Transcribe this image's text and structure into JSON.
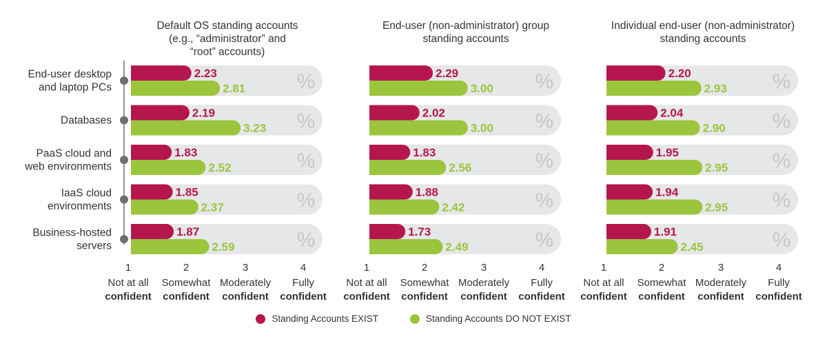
{
  "chart_data": {
    "type": "bar",
    "orientation": "horizontal",
    "xlim": [
      1,
      4
    ],
    "categories": [
      [
        "End-user desktop",
        "and laptop PCs"
      ],
      [
        "Databases"
      ],
      [
        "PaaS cloud and",
        "web environments"
      ],
      [
        "IaaS cloud",
        "environments"
      ],
      [
        "Business-hosted",
        "servers"
      ]
    ],
    "ticks": [
      {
        "num": "1",
        "top": "Not at all",
        "bottom": "confident"
      },
      {
        "num": "2",
        "top": "Somewhat",
        "bottom": "confident"
      },
      {
        "num": "3",
        "top": "Moderately",
        "bottom": "confident"
      },
      {
        "num": "4",
        "top": "Fully",
        "bottom": "confident"
      }
    ],
    "background_symbol": "%",
    "panels": [
      {
        "title": [
          "Default OS standing accounts",
          "(e.g., “administrator” and",
          "“root” accounts)"
        ],
        "series": [
          {
            "name": "Standing Accounts EXIST",
            "values": [
              2.23,
              2.19,
              1.83,
              1.85,
              1.87
            ]
          },
          {
            "name": "Standing Accounts DO NOT EXIST",
            "values": [
              2.81,
              3.23,
              2.52,
              2.37,
              2.59
            ]
          }
        ]
      },
      {
        "title": [
          "End-user (non-administrator) group",
          "standing accounts"
        ],
        "series": [
          {
            "name": "Standing Accounts EXIST",
            "values": [
              2.29,
              2.02,
              1.83,
              1.88,
              1.73
            ]
          },
          {
            "name": "Standing Accounts DO NOT EXIST",
            "values": [
              3.0,
              3.0,
              2.56,
              2.42,
              2.49
            ]
          }
        ]
      },
      {
        "title": [
          "Individual end-user (non-administrator)",
          "standing accounts"
        ],
        "series": [
          {
            "name": "Standing Accounts EXIST",
            "values": [
              2.2,
              2.04,
              1.95,
              1.94,
              1.91
            ]
          },
          {
            "name": "Standing Accounts DO NOT EXIST",
            "values": [
              2.93,
              2.9,
              2.95,
              2.95,
              2.45
            ]
          }
        ]
      }
    ],
    "legend": [
      {
        "label": "Standing Accounts EXIST",
        "color": "#b5164e"
      },
      {
        "label": "Standing Accounts DO NOT EXIST",
        "color": "#9bc53d"
      }
    ]
  },
  "colors": {
    "exist": "#b5164e",
    "not_exist": "#9bc53d",
    "track": "#e6e7e8",
    "axis": "#6d6e71"
  }
}
